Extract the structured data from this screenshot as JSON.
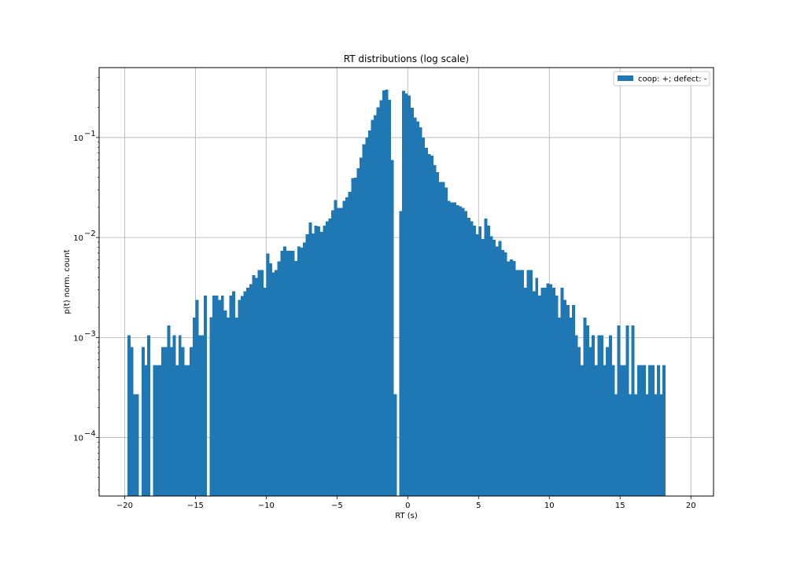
{
  "chart_data": {
    "type": "bar",
    "title": "RT distributions (log scale)",
    "xlabel": "RT (s)",
    "ylabel": "p(t) norm. count",
    "xlim": [
      -21.8,
      21.6
    ],
    "ylim": [
      2.6e-05,
      0.5
    ],
    "yscale": "log",
    "grid": true,
    "legend_position": "top-right",
    "bar_color": "#1f77b4",
    "bin_width": 0.2,
    "x_ticks": [
      {
        "value": -20,
        "label": "−20"
      },
      {
        "value": -15,
        "label": "−15"
      },
      {
        "value": -10,
        "label": "−10"
      },
      {
        "value": -5,
        "label": "−5"
      },
      {
        "value": 0,
        "label": "0"
      },
      {
        "value": 5,
        "label": "5"
      },
      {
        "value": 10,
        "label": "10"
      },
      {
        "value": 15,
        "label": "15"
      },
      {
        "value": 20,
        "label": "20"
      }
    ],
    "y_ticks": [
      {
        "value": 0.1,
        "base": "10",
        "exp": "−1"
      },
      {
        "value": 0.01,
        "base": "10",
        "exp": "−2"
      },
      {
        "value": 0.001,
        "base": "10",
        "exp": "−3"
      },
      {
        "value": 0.0001,
        "base": "10",
        "exp": "−4"
      }
    ],
    "series": [
      {
        "name": "coop: +; defect: -",
        "bin_start": -19.8,
        "values": [
          0.00105,
          0.0008,
          0.00027,
          0.00027,
          0,
          0.0008,
          0.00053,
          0.00105,
          0,
          0.00053,
          0.00053,
          0.00053,
          0.0008,
          0.0008,
          0.00132,
          0.0008,
          0.00105,
          0.00053,
          0.00105,
          0.0008,
          0.00053,
          0.00053,
          0.0008,
          0.00158,
          0.00237,
          0.00105,
          0.00105,
          0.00263,
          0,
          0.0016,
          0.00263,
          0.00263,
          0.00237,
          0.00263,
          0.00187,
          0.00158,
          0.00263,
          0.0029,
          0.00158,
          0.00237,
          0.0026,
          0.0029,
          0.00316,
          0.00342,
          0.00421,
          0.00395,
          0.00474,
          0.00474,
          0.00316,
          0.00689,
          0.00553,
          0.00448,
          0.00474,
          0.00579,
          0.00737,
          0.00816,
          0.00737,
          0.00737,
          0.00737,
          0.0058,
          0.00816,
          0.0079,
          0.00895,
          0.0108,
          0.0142,
          0.011,
          0.0132,
          0.0129,
          0.0114,
          0.0132,
          0.0145,
          0.0155,
          0.0187,
          0.0237,
          0.0197,
          0.0197,
          0.0232,
          0.0253,
          0.0286,
          0.0392,
          0.0395,
          0.0493,
          0.0629,
          0.0853,
          0.1,
          0.118,
          0.15,
          0.168,
          0.2,
          0.236,
          0.295,
          0.3,
          0.237,
          0.0595,
          0.00027,
          0,
          0.0184,
          0.294,
          0.276,
          0.263,
          0.199,
          0.158,
          0.145,
          0.126,
          0.1,
          0.079,
          0.068,
          0.066,
          0.053,
          0.045,
          0.036,
          0.036,
          0.0315,
          0.0232,
          0.0224,
          0.0224,
          0.0211,
          0.0205,
          0.0197,
          0.0184,
          0.0158,
          0.0145,
          0.0132,
          0.0108,
          0.0129,
          0.00969,
          0.0155,
          0.0132,
          0.0103,
          0.00952,
          0.00816,
          0.00921,
          0.0075,
          0.00711,
          0.00579,
          0.00605,
          0.0058,
          0.00474,
          0.00474,
          0.00474,
          0.00316,
          0.00474,
          0.00474,
          0.0029,
          0.00395,
          0.00263,
          0.00316,
          0.00316,
          0.00348,
          0.00342,
          0.00316,
          0.00263,
          0.00158,
          0.00316,
          0.00237,
          0.00211,
          0.00158,
          0.00211,
          0.00105,
          0.0008,
          0.00053,
          0.00158,
          0.00132,
          0.0008,
          0.00105,
          0.00053,
          0.00105,
          0.00105,
          0.00053,
          0.0008,
          0.00105,
          0.00053,
          0.00027,
          0.00132,
          0.00053,
          0.00053,
          0.00132,
          0.00027,
          0.00132,
          0.00027,
          0.00053,
          0.00053,
          0.00053,
          0.00027,
          0.00053,
          0.00053,
          0.00027,
          0.00053,
          0.00027,
          0.00053
        ]
      }
    ]
  }
}
